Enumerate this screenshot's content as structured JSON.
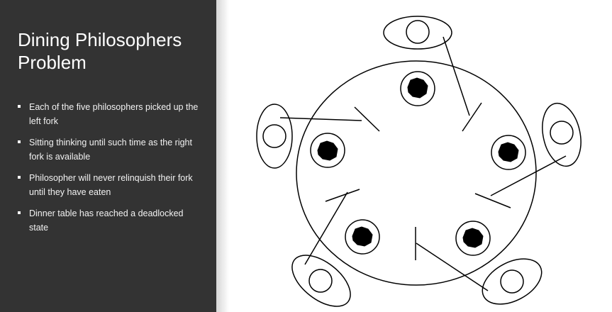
{
  "slide": {
    "title_lines": [
      "Dining Philosophers",
      "Problem"
    ],
    "bullets": [
      "Each of the five philosophers picked up the left fork",
      "Sitting thinking until such time as the right fork is available",
      "Philosopher will never relinquish their fork until they have eaten",
      "Dinner table has reached a deadlocked state"
    ]
  },
  "colors": {
    "left_panel": "#333333",
    "slide_background": "#ffffff",
    "drawing_ink": "#000000"
  },
  "diagram": {
    "philosopher_count": 5,
    "fork_count": 5,
    "plate_count": 5,
    "forks_held": 5
  }
}
